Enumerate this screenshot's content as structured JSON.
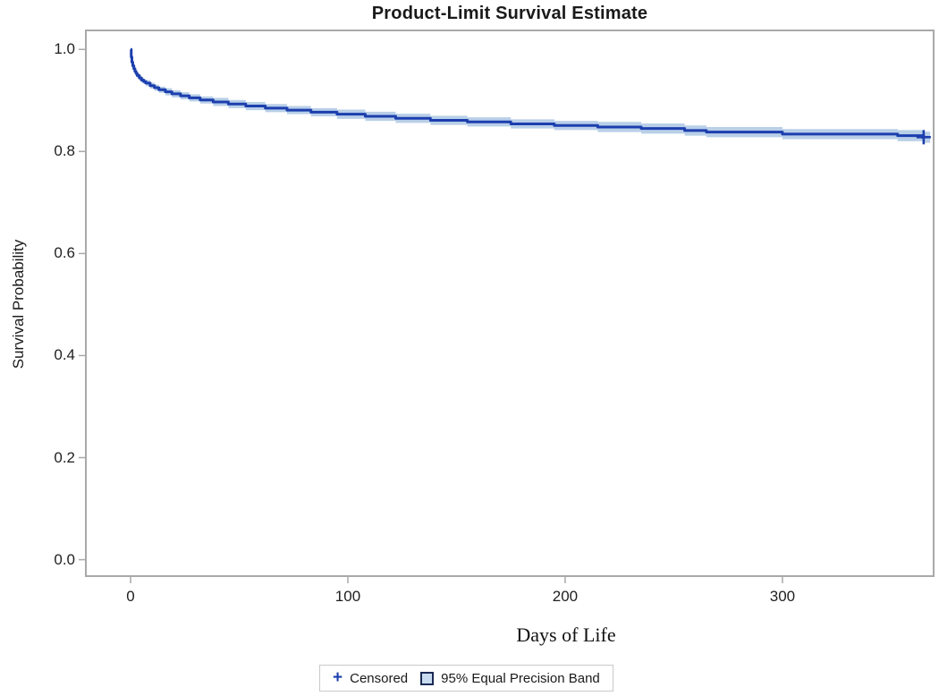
{
  "window": {
    "title": "Product-Limit Survival Estimate"
  },
  "chart_data": {
    "type": "line",
    "subtype": "kaplan-meier-step-with-confidence-band",
    "title": "Product-Limit Survival Estimate",
    "xlabel": "Days of Life",
    "ylabel": "Survival Probability",
    "xlim": [
      -21,
      370
    ],
    "ylim": [
      -0.034,
      1.039
    ],
    "grid": false,
    "xticks": [
      0,
      100,
      200,
      300
    ],
    "xtick_labels": [
      "0",
      "100",
      "200",
      "300"
    ],
    "yticks": [
      0.0,
      0.2,
      0.4,
      0.6,
      0.8,
      1.0
    ],
    "ytick_labels": [
      "0.0",
      "0.2",
      "0.4",
      "0.6",
      "0.8",
      "1.0"
    ],
    "series": [
      {
        "name": "Survival estimate",
        "x": [
          0,
          0.3,
          0.6,
          1,
          1.5,
          2,
          2.5,
          3,
          4,
          5,
          6,
          7,
          9,
          11,
          13,
          16,
          19,
          23,
          27,
          32,
          38,
          45,
          53,
          62,
          72,
          83,
          95,
          108,
          122,
          138,
          155,
          175,
          195,
          215,
          235,
          255,
          265,
          300,
          353,
          365
        ],
        "y": [
          1.0,
          0.985,
          0.975,
          0.968,
          0.962,
          0.957,
          0.953,
          0.949,
          0.944,
          0.94,
          0.937,
          0.934,
          0.929,
          0.925,
          0.921,
          0.917,
          0.913,
          0.909,
          0.905,
          0.901,
          0.897,
          0.893,
          0.889,
          0.885,
          0.881,
          0.877,
          0.873,
          0.869,
          0.865,
          0.861,
          0.858,
          0.854,
          0.851,
          0.848,
          0.845,
          0.841,
          0.838,
          0.834,
          0.831,
          0.828
        ],
        "band_halfwidth": [
          0,
          0.002,
          0.003,
          0.003,
          0.004,
          0.004,
          0.004,
          0.005,
          0.005,
          0.005,
          0.005,
          0.006,
          0.006,
          0.006,
          0.006,
          0.007,
          0.007,
          0.007,
          0.007,
          0.007,
          0.008,
          0.008,
          0.008,
          0.008,
          0.008,
          0.008,
          0.009,
          0.009,
          0.009,
          0.009,
          0.009,
          0.009,
          0.009,
          0.01,
          0.01,
          0.01,
          0.01,
          0.01,
          0.011,
          0.011
        ],
        "line_end_x": 364,
        "band_end_x": 368
      }
    ],
    "censored_points": [
      {
        "x": 365,
        "y": 0.828
      }
    ],
    "colors": {
      "line": "#1c3fae",
      "band": "#b9cfe8",
      "frame": "#a9a9a9",
      "text": "#1a1a1a",
      "legend_square_fill": "#c9dcef",
      "legend_square_border": "#1b2a55"
    },
    "legend": {
      "position": "bottom",
      "items": [
        {
          "symbol": "plus-marker",
          "label": "Censored"
        },
        {
          "symbol": "band-square",
          "label": "95% Equal Precision Band"
        }
      ]
    }
  }
}
